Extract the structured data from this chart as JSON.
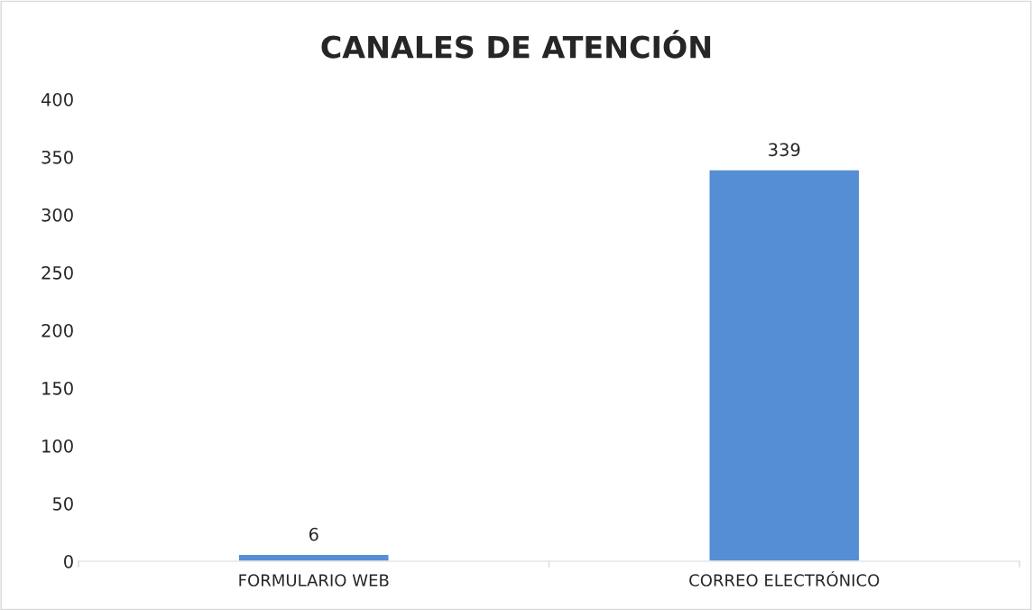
{
  "chart_data": {
    "type": "bar",
    "title": "CANALES DE ATENCIÓN",
    "categories": [
      "FORMULARIO WEB",
      "CORREO ELECTRÓNICO"
    ],
    "values": [
      6,
      339
    ],
    "color": "#558ed5",
    "ylim": [
      0,
      400
    ],
    "yticks": [
      0,
      50,
      100,
      150,
      200,
      250,
      300,
      350,
      400
    ],
    "data_labels": true,
    "grid": false,
    "legend": false
  }
}
